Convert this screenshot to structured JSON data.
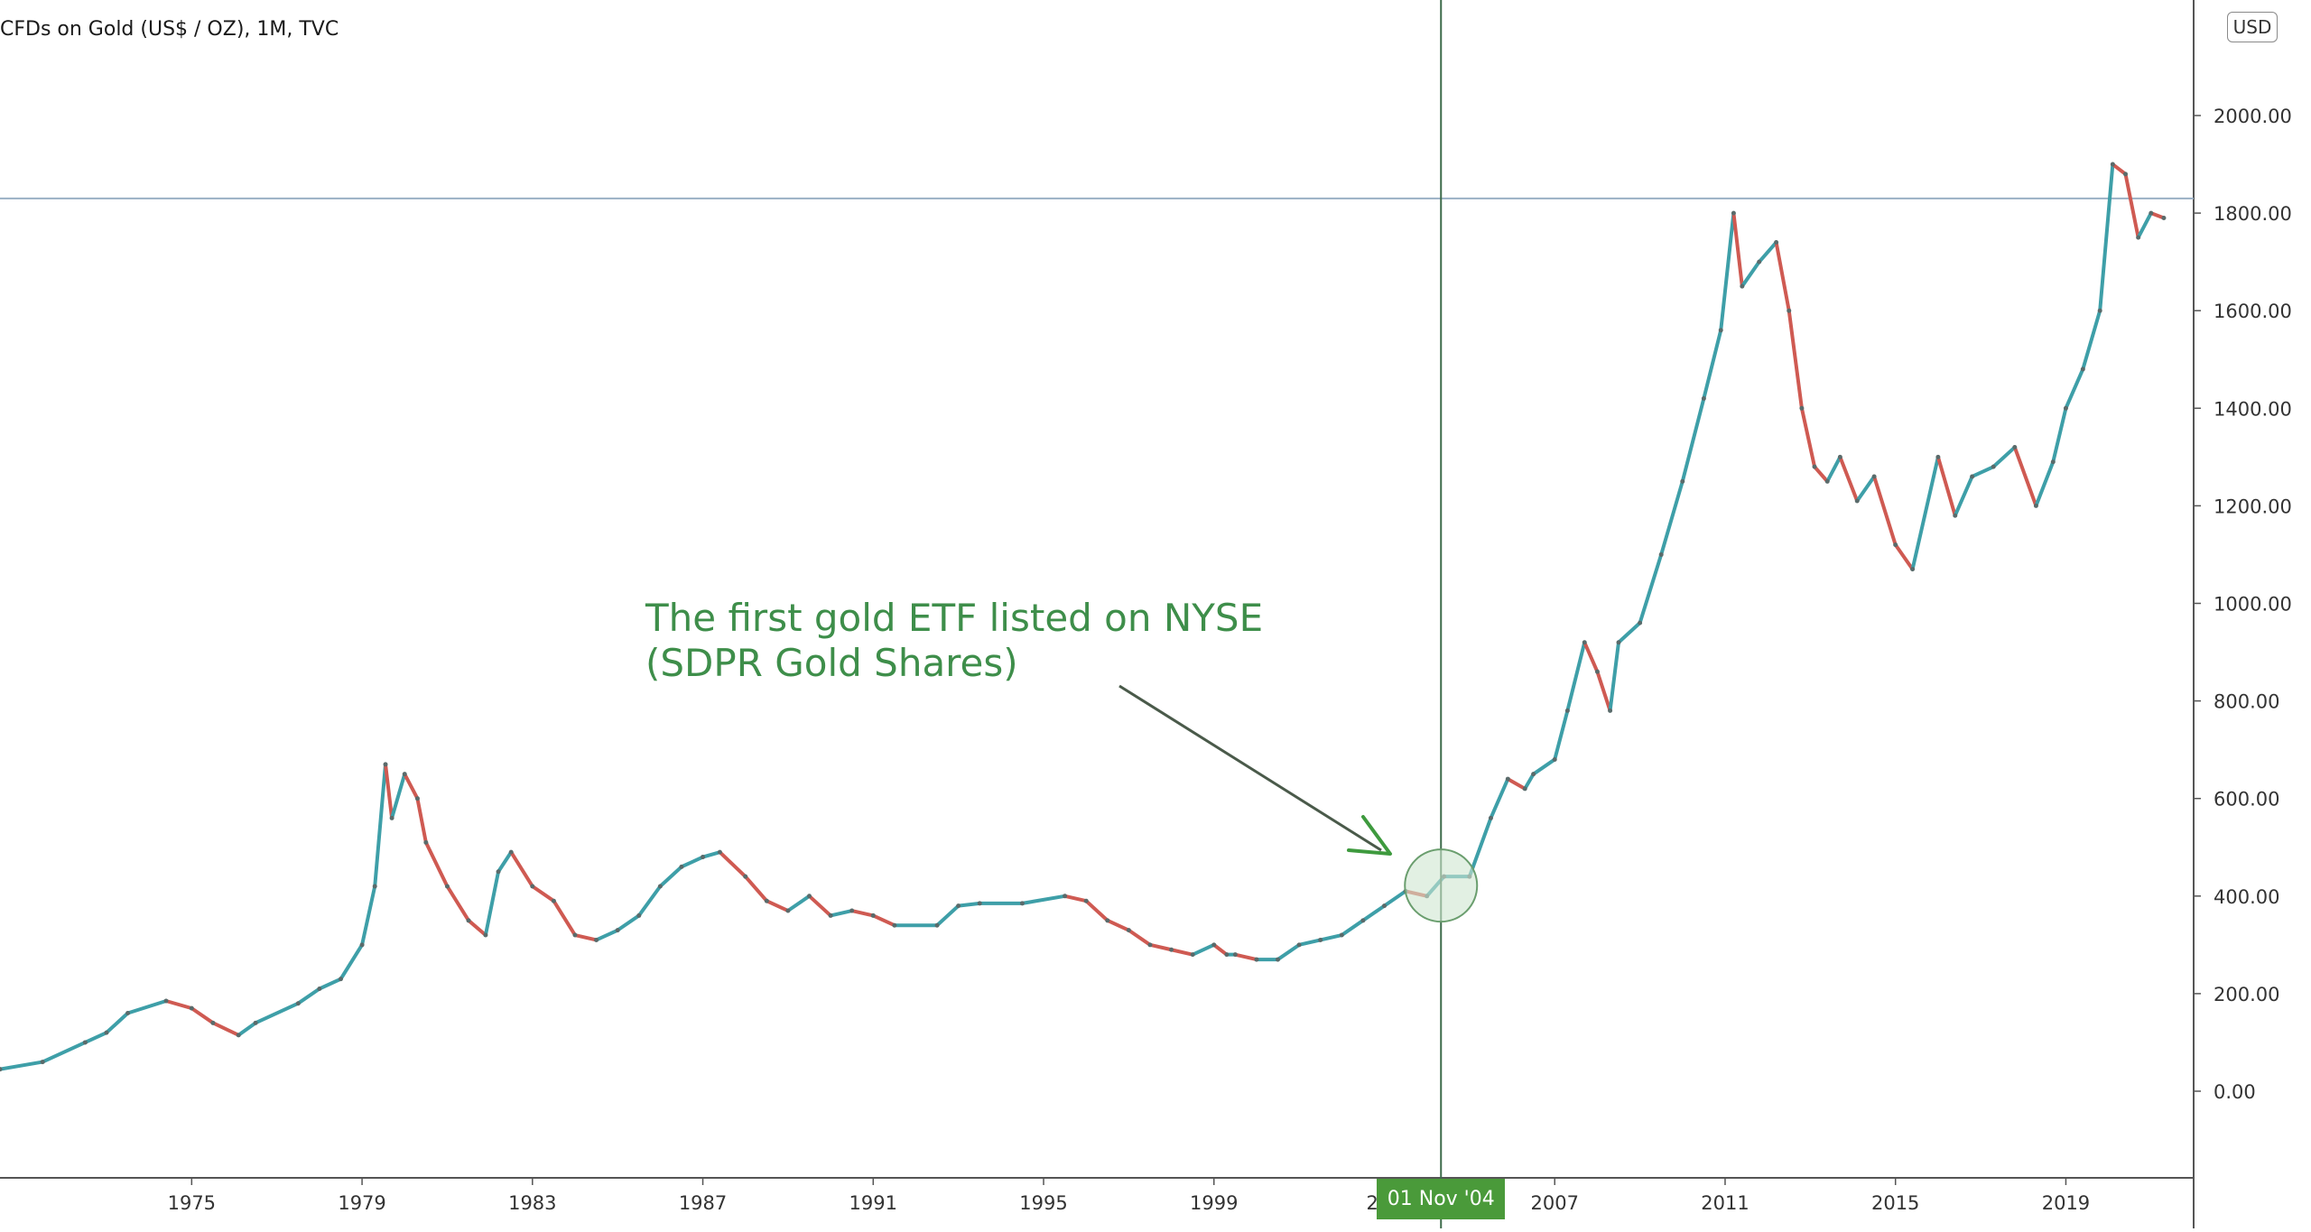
{
  "chart_title": "CFDs on Gold (US$ / OZ), 1M, TVC",
  "currency": "USD",
  "crosshair_date": "01 Nov '04",
  "annotation": {
    "line1": "The first gold ETF listed on NYSE",
    "line2": "(SDPR Gold Shares)"
  },
  "colors": {
    "up": "#3e9fa8",
    "down": "#cf5a52",
    "annotation": "#3e8e4a",
    "crosshair": "#3d6b4a",
    "price_line": "#9ab0c4",
    "highlight_fill": "#cfe6d0",
    "highlight_stroke": "#6a9e6e",
    "axis": "#555555"
  },
  "chart_data": {
    "type": "line",
    "title": "CFDs on Gold (US$ / OZ), 1M, TVC",
    "interval": "1M",
    "ylim": [
      -150,
      2350
    ],
    "y_ticks": [
      "0.00",
      "200.00",
      "400.00",
      "600.00",
      "800.00",
      "1000.00",
      "1200.00",
      "1400.00",
      "1600.00",
      "1800.00",
      "2000.00"
    ],
    "x_ticks": [
      "1975",
      "1979",
      "1983",
      "1987",
      "1991",
      "1995",
      "1999",
      "200",
      "2007",
      "2011",
      "2015",
      "2019"
    ],
    "horizontal_line": 1830,
    "crosshair_x": 2004.83,
    "highlight_x": 2004.83,
    "series": [
      {
        "x": [
          1971.0,
          1972.0,
          1973.0,
          1973.5,
          1974.0,
          1974.9,
          1975.5,
          1976.0,
          1976.6,
          1977.0,
          1978.0,
          1978.5,
          1979.0,
          1979.5,
          1979.8,
          1980.05,
          1980.2,
          1980.5,
          1980.8,
          1981.0,
          1981.5,
          1982.0,
          1982.4,
          1982.7,
          1983.0,
          1983.5,
          1984.0,
          1984.5,
          1985.0,
          1985.5,
          1986.0,
          1986.5,
          1987.0,
          1987.5,
          1987.9,
          1988.5,
          1989.0,
          1989.5,
          1990.0,
          1990.5,
          1991.0,
          1991.5,
          1992.0,
          1993.0,
          1993.5,
          1994.0,
          1995.0,
          1996.0,
          1996.5,
          1997.0,
          1997.5,
          1998.0,
          1998.5,
          1999.0,
          1999.5,
          1999.8,
          2000.0,
          2000.5,
          2001.0,
          2001.5,
          2002.0,
          2002.5,
          2003.0,
          2003.5,
          2004.0,
          2004.5,
          2004.9,
          2005.5,
          2006.0,
          2006.4,
          2006.8,
          2007.0,
          2007.5,
          2007.8,
          2008.2,
          2008.5,
          2008.8,
          2009.0,
          2009.5,
          2010.0,
          2010.5,
          2011.0,
          2011.4,
          2011.7,
          2011.9,
          2012.3,
          2012.7,
          2013.0,
          2013.3,
          2013.6,
          2013.9,
          2014.2,
          2014.6,
          2015.0,
          2015.5,
          2015.9,
          2016.5,
          2016.9,
          2017.3,
          2017.8,
          2018.3,
          2018.8,
          2019.2,
          2019.5,
          2019.9,
          2020.3,
          2020.6,
          2020.9,
          2021.2,
          2021.5,
          2021.8
        ],
        "y": [
          45,
          60,
          100,
          120,
          160,
          185,
          170,
          140,
          115,
          140,
          180,
          210,
          230,
          300,
          420,
          670,
          560,
          650,
          600,
          510,
          420,
          350,
          320,
          450,
          490,
          420,
          390,
          320,
          310,
          330,
          360,
          420,
          460,
          480,
          490,
          440,
          390,
          370,
          400,
          360,
          370,
          360,
          340,
          340,
          380,
          385,
          385,
          400,
          390,
          350,
          330,
          300,
          290,
          280,
          300,
          280,
          280,
          270,
          270,
          300,
          310,
          320,
          350,
          380,
          410,
          400,
          440,
          440,
          560,
          640,
          620,
          650,
          680,
          780,
          920,
          860,
          780,
          920,
          960,
          1100,
          1250,
          1420,
          1560,
          1800,
          1650,
          1700,
          1740,
          1600,
          1400,
          1280,
          1250,
          1300,
          1210,
          1260,
          1120,
          1070,
          1300,
          1180,
          1260,
          1280,
          1320,
          1200,
          1290,
          1400,
          1480,
          1600,
          1900,
          1880,
          1750,
          1800,
          1790
        ]
      }
    ]
  }
}
